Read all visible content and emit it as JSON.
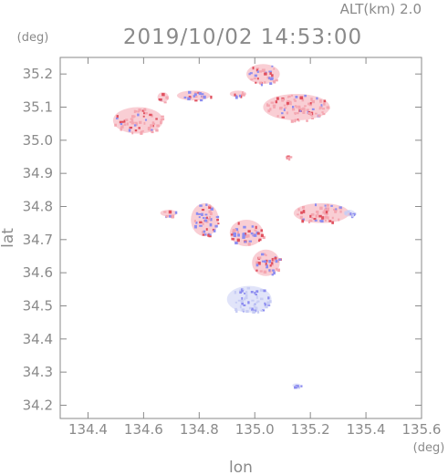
{
  "header": {
    "altitude_label": "ALT(km)  2.0",
    "timestamp": "2019/10/02 14:53:00"
  },
  "chart_data": {
    "type": "heatmap",
    "title": "2019/10/02 14:53:00",
    "subtitle": "ALT(km)  2.0",
    "xlabel": "lon",
    "ylabel": "lat",
    "x_unit": "(deg)",
    "y_unit": "(deg)",
    "xlim": [
      134.3,
      135.6
    ],
    "ylim": [
      34.16,
      35.25
    ],
    "x_ticks": [
      "134.4",
      "134.6",
      "134.8",
      "135.0",
      "135.2",
      "135.4",
      "135.6"
    ],
    "y_ticks": [
      "34.2",
      "34.3",
      "34.4",
      "34.5",
      "34.6",
      "34.7",
      "34.8",
      "34.9",
      "35.0",
      "35.1",
      "35.2"
    ],
    "grid": false,
    "colors": {
      "positive": "#f4a6b0",
      "positive_strong": "#e0505e",
      "negative": "#8c8cf0",
      "negative_light": "#c8cdf4",
      "axis": "#8a8a8a"
    },
    "echo_regions": [
      {
        "lon": 134.58,
        "lat": 35.06,
        "rx": 0.09,
        "ry": 0.04,
        "polarity": "positive"
      },
      {
        "lon": 134.67,
        "lat": 35.13,
        "rx": 0.02,
        "ry": 0.015,
        "polarity": "positive"
      },
      {
        "lon": 134.78,
        "lat": 35.135,
        "rx": 0.06,
        "ry": 0.015,
        "polarity": "mixed"
      },
      {
        "lon": 134.94,
        "lat": 35.14,
        "rx": 0.03,
        "ry": 0.01,
        "polarity": "mixed"
      },
      {
        "lon": 135.03,
        "lat": 35.2,
        "rx": 0.06,
        "ry": 0.03,
        "polarity": "mixed"
      },
      {
        "lon": 135.15,
        "lat": 35.1,
        "rx": 0.12,
        "ry": 0.04,
        "polarity": "positive"
      },
      {
        "lon": 135.24,
        "lat": 34.78,
        "rx": 0.1,
        "ry": 0.03,
        "polarity": "positive"
      },
      {
        "lon": 134.82,
        "lat": 34.76,
        "rx": 0.05,
        "ry": 0.05,
        "polarity": "mixed"
      },
      {
        "lon": 134.97,
        "lat": 34.72,
        "rx": 0.06,
        "ry": 0.04,
        "polarity": "mixed"
      },
      {
        "lon": 135.04,
        "lat": 34.63,
        "rx": 0.05,
        "ry": 0.04,
        "polarity": "mixed"
      },
      {
        "lon": 134.98,
        "lat": 34.52,
        "rx": 0.08,
        "ry": 0.04,
        "polarity": "negative"
      },
      {
        "lon": 134.69,
        "lat": 34.78,
        "rx": 0.03,
        "ry": 0.01,
        "polarity": "mixed"
      },
      {
        "lon": 135.34,
        "lat": 34.78,
        "rx": 0.02,
        "ry": 0.01,
        "polarity": "negative"
      },
      {
        "lon": 135.12,
        "lat": 34.95,
        "rx": 0.01,
        "ry": 0.005,
        "polarity": "positive"
      },
      {
        "lon": 135.15,
        "lat": 34.26,
        "rx": 0.015,
        "ry": 0.006,
        "polarity": "negative"
      }
    ]
  }
}
